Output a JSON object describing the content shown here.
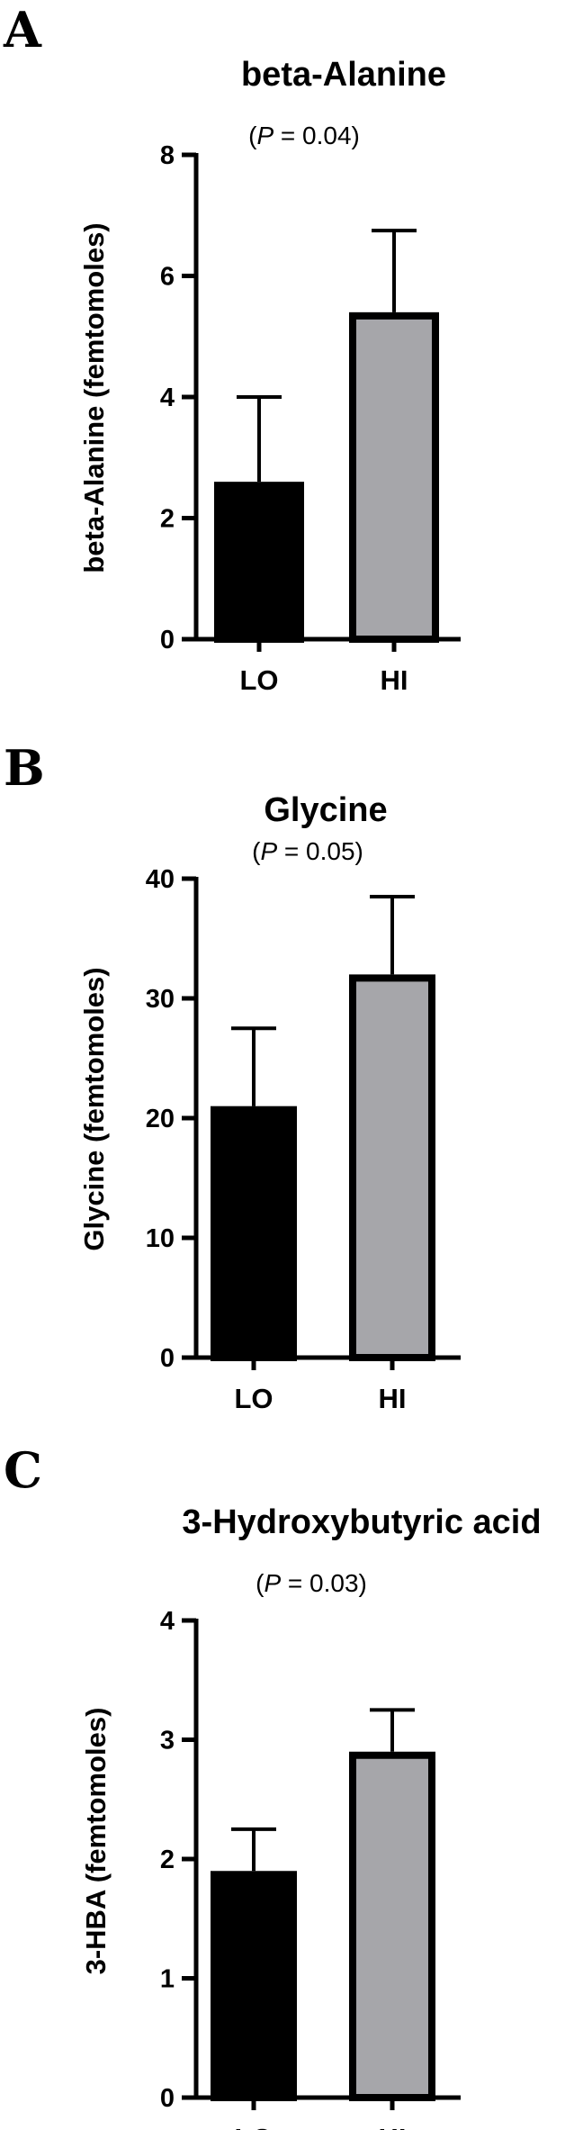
{
  "chart_data": [
    {
      "panel": "A",
      "type": "bar",
      "title": "beta-Alanine",
      "p_prefix": "(",
      "p_symbol": "P",
      "p_suffix": " = 0.04)",
      "ylabel": "beta-Alanine (femtomoles)",
      "categories": [
        "LO",
        "HI"
      ],
      "values": [
        2.6,
        5.4
      ],
      "errors": [
        1.4,
        1.35
      ],
      "ylim": [
        0,
        8
      ],
      "yticks": [
        0,
        2,
        4,
        6,
        8
      ],
      "bar_colors": [
        "#000000",
        "#a6a6aa"
      ]
    },
    {
      "panel": "B",
      "type": "bar",
      "title": "Glycine",
      "p_prefix": "(",
      "p_symbol": "P",
      "p_suffix": " = 0.05)",
      "ylabel": "Glycine (femtomoles)",
      "categories": [
        "LO",
        "HI"
      ],
      "values": [
        21,
        32
      ],
      "errors": [
        6.5,
        6.5
      ],
      "ylim": [
        0,
        40
      ],
      "yticks": [
        0,
        10,
        20,
        30,
        40
      ],
      "bar_colors": [
        "#000000",
        "#a6a6aa"
      ]
    },
    {
      "panel": "C",
      "type": "bar",
      "title": "3-Hydroxybutyric acid",
      "p_prefix": "(",
      "p_symbol": "P",
      "p_suffix": " = 0.03)",
      "ylabel": "3-HBA (femtomoles)",
      "categories": [
        "LO",
        "HI"
      ],
      "values": [
        1.9,
        2.9
      ],
      "errors": [
        0.35,
        0.35
      ],
      "ylim": [
        0,
        4
      ],
      "yticks": [
        0,
        1,
        2,
        3,
        4
      ],
      "bar_colors": [
        "#000000",
        "#a6a6aa"
      ]
    }
  ]
}
